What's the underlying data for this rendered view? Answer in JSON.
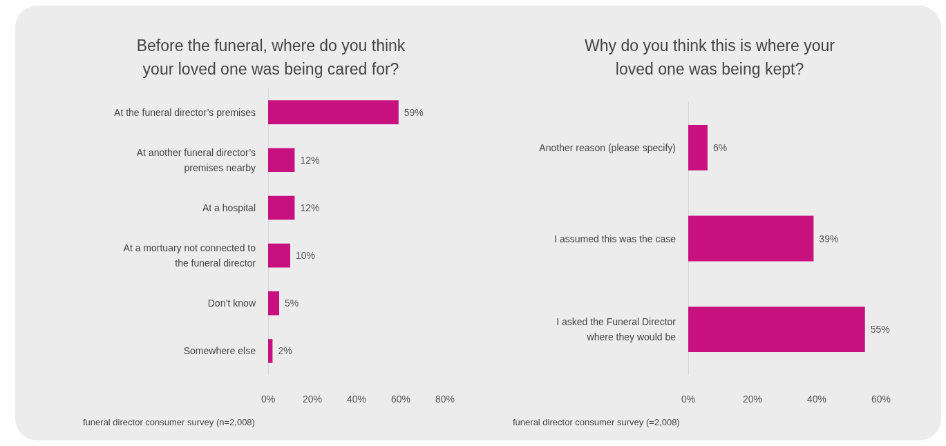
{
  "chart_data": [
    {
      "type": "bar",
      "orientation": "horizontal",
      "title": "Before the funeral, where do you think\nyour loved one was being cared for?",
      "categories": [
        "At the funeral director’s premises",
        "At another funeral director’s\npremises nearby",
        "At a hospital",
        "At a mortuary not connected to\nthe funeral director",
        "Don’t know",
        "Somewhere else"
      ],
      "values": [
        59,
        12,
        12,
        10,
        5,
        2
      ],
      "value_labels": [
        "59%",
        "12%",
        "12%",
        "10%",
        "5%",
        "2%"
      ],
      "color": "#c8117e",
      "xlim": [
        0,
        80
      ],
      "xticks": [
        {
          "value": 0,
          "label": "0%"
        },
        {
          "value": 20,
          "label": "20%"
        },
        {
          "value": 40,
          "label": "40%"
        },
        {
          "value": 60,
          "label": "60%"
        },
        {
          "value": 80,
          "label": "80%"
        }
      ],
      "annotations": [
        "funeral director consumer survey (n=2,008)"
      ]
    },
    {
      "type": "bar",
      "orientation": "horizontal",
      "title": "Why do you think this is where your\nloved one was being kept?",
      "categories": [
        "Another reason (please specify)",
        "I assumed this was the case",
        "I asked the Funeral Director\nwhere they would be"
      ],
      "values": [
        6,
        39,
        55
      ],
      "value_labels": [
        "6%",
        "39%",
        "55%"
      ],
      "color": "#c8117e",
      "xlim": [
        0,
        60
      ],
      "xticks": [
        {
          "value": 0,
          "label": "0%"
        },
        {
          "value": 20,
          "label": "20%"
        },
        {
          "value": 40,
          "label": "40%"
        },
        {
          "value": 60,
          "label": "60%"
        }
      ],
      "annotations": [
        "funeral director consumer survey (=2,008)"
      ]
    }
  ]
}
